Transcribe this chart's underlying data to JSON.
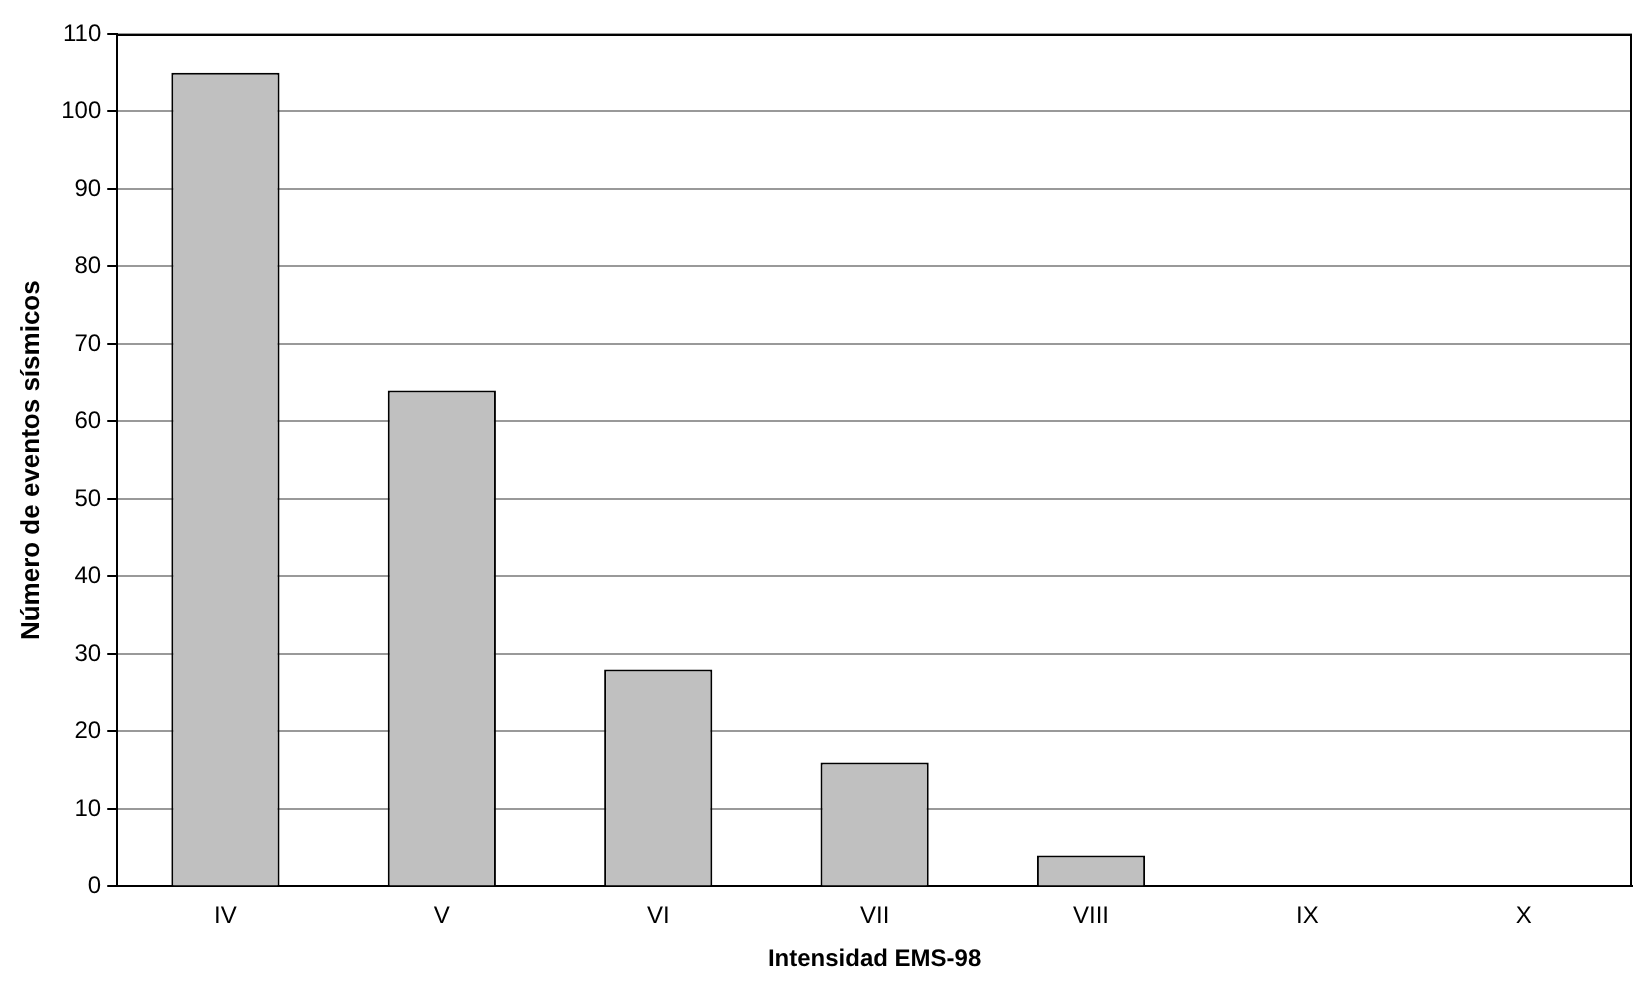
{
  "chart_data": {
    "type": "bar",
    "xlabel": "Intensidad EMS-98",
    "ylabel": "Número de eventos sísmicos",
    "categories": [
      "IV",
      "V",
      "VI",
      "VII",
      "VIII",
      "IX",
      "X"
    ],
    "values": [
      105,
      64,
      28,
      16,
      4,
      0,
      0
    ],
    "color": "#c0c0c0",
    "ylim": [
      0,
      110
    ],
    "yticks": [
      0,
      10,
      20,
      30,
      40,
      50,
      60,
      70,
      80,
      90,
      100,
      110
    ],
    "grid": "y",
    "legend": false
  }
}
